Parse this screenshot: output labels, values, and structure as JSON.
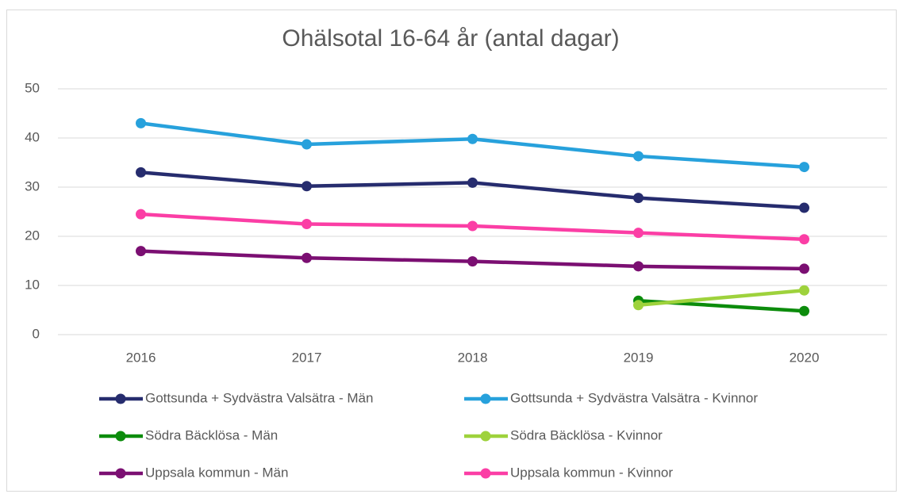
{
  "chart_data": {
    "type": "line",
    "title": "Ohälsotal 16-64 år (antal dagar)",
    "categories": [
      "2016",
      "2017",
      "2018",
      "2019",
      "2020"
    ],
    "ylim": [
      0,
      50
    ],
    "yticks": [
      0,
      10,
      20,
      30,
      40,
      50
    ],
    "grid": true,
    "legend": "bottom",
    "series": [
      {
        "name": "Gottsunda + Sydvästra Valsätra - Män",
        "color": "#262c6e",
        "values": [
          33,
          30.2,
          30.9,
          27.8,
          25.8
        ]
      },
      {
        "name": "Gottsunda + Sydvästra Valsätra - Kvinnor",
        "color": "#27a1dc",
        "values": [
          43,
          38.7,
          39.8,
          36.3,
          34.1
        ]
      },
      {
        "name": "Södra Bäcklösa - Män",
        "color": "#0c8c0c",
        "values": [
          null,
          null,
          null,
          6.9,
          4.8
        ]
      },
      {
        "name": "Södra Bäcklösa - Kvinnor",
        "color": "#9ed23c",
        "values": [
          null,
          null,
          null,
          6.0,
          9.0
        ]
      },
      {
        "name": "Uppsala kommun - Män",
        "color": "#7b0f72",
        "values": [
          17,
          15.6,
          14.9,
          13.9,
          13.4
        ]
      },
      {
        "name": "Uppsala kommun - Kvinnor",
        "color": "#fb3ea5",
        "values": [
          24.5,
          22.5,
          22.1,
          20.7,
          19.4
        ]
      }
    ]
  }
}
